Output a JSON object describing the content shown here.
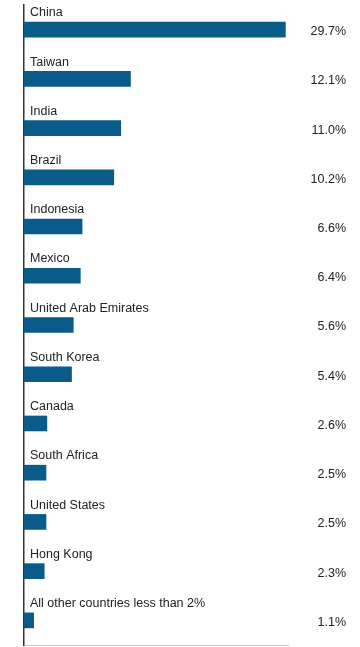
{
  "chart_data": {
    "type": "bar",
    "orientation": "horizontal",
    "categories": [
      "China",
      "Taiwan",
      "India",
      "Brazil",
      "Indonesia",
      "Mexico",
      "United Arab Emirates",
      "South Korea",
      "Canada",
      "South Africa",
      "United States",
      "Hong Kong",
      "All other countries less than 2%"
    ],
    "values": [
      29.7,
      12.1,
      11.0,
      10.2,
      6.6,
      6.4,
      5.6,
      5.4,
      2.6,
      2.5,
      2.5,
      2.3,
      1.1
    ],
    "value_labels": [
      "29.7%",
      "12.1%",
      "11.0%",
      "10.2%",
      "6.6%",
      "6.4%",
      "5.6%",
      "5.4%",
      "2.6%",
      "2.5%",
      "2.5%",
      "2.3%",
      "1.1%"
    ],
    "color": "#0b5b8a",
    "xlim": [
      0,
      30
    ],
    "grid": false,
    "data_labels": true,
    "tick_labels": false
  }
}
